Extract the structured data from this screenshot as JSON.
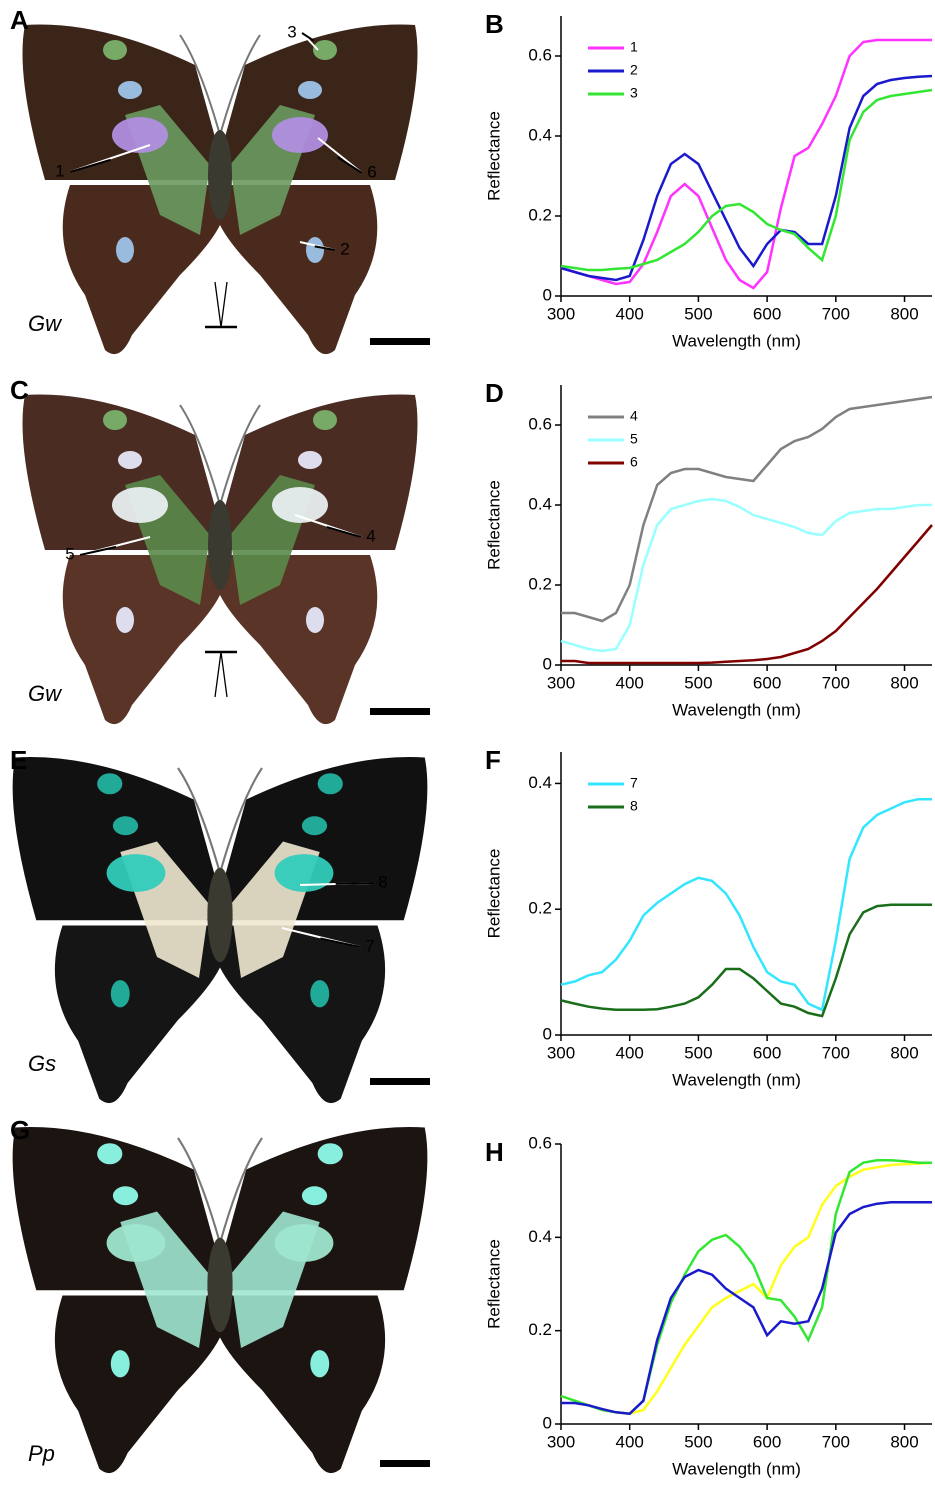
{
  "photos": [
    {
      "panel": "A",
      "species": "Gw",
      "labels": [
        "1",
        "2",
        "3",
        "6"
      ]
    },
    {
      "panel": "C",
      "species": "Gw",
      "labels": [
        "4",
        "5"
      ]
    },
    {
      "panel": "E",
      "species": "Gs",
      "labels": [
        "7",
        "8"
      ]
    },
    {
      "panel": "G",
      "species": "Pp"
    }
  ],
  "chart_data": [
    {
      "type": "line",
      "panel": "B",
      "x_label": "Wavelength (nm)",
      "y_label": "Reflectance",
      "x": [
        300,
        320,
        340,
        360,
        380,
        400,
        420,
        440,
        460,
        480,
        500,
        520,
        540,
        560,
        580,
        600,
        620,
        640,
        660,
        680,
        700,
        720,
        740,
        760,
        780,
        800,
        820,
        840
      ],
      "xlim": [
        300,
        840
      ],
      "xticks": [
        300,
        400,
        500,
        600,
        700,
        800
      ],
      "ylim": [
        0,
        0.7
      ],
      "yticks": [
        0,
        0.2,
        0.4,
        0.6
      ],
      "series": [
        {
          "name": "1",
          "color": "#ff33ff",
          "values": [
            0.07,
            0.06,
            0.05,
            0.04,
            0.03,
            0.035,
            0.08,
            0.16,
            0.25,
            0.28,
            0.25,
            0.17,
            0.09,
            0.04,
            0.02,
            0.06,
            0.22,
            0.35,
            0.37,
            0.43,
            0.5,
            0.6,
            0.635,
            0.64,
            0.64,
            0.64,
            0.64,
            0.64
          ]
        },
        {
          "name": "2",
          "color": "#1a1acc",
          "values": [
            0.07,
            0.06,
            0.05,
            0.045,
            0.04,
            0.05,
            0.14,
            0.25,
            0.33,
            0.355,
            0.33,
            0.26,
            0.19,
            0.12,
            0.075,
            0.13,
            0.165,
            0.16,
            0.13,
            0.13,
            0.25,
            0.42,
            0.5,
            0.53,
            0.54,
            0.545,
            0.548,
            0.55
          ]
        },
        {
          "name": "3",
          "color": "#33e633",
          "values": [
            0.075,
            0.07,
            0.065,
            0.065,
            0.068,
            0.07,
            0.08,
            0.09,
            0.11,
            0.13,
            0.16,
            0.2,
            0.225,
            0.23,
            0.21,
            0.18,
            0.165,
            0.155,
            0.12,
            0.09,
            0.2,
            0.39,
            0.46,
            0.49,
            0.5,
            0.505,
            0.51,
            0.515
          ]
        }
      ]
    },
    {
      "type": "line",
      "panel": "D",
      "x_label": "Wavelength (nm)",
      "y_label": "Reflectance",
      "x": [
        300,
        320,
        340,
        360,
        380,
        400,
        420,
        440,
        460,
        480,
        500,
        520,
        540,
        560,
        580,
        600,
        620,
        640,
        660,
        680,
        700,
        720,
        740,
        760,
        780,
        800,
        820,
        840
      ],
      "xlim": [
        300,
        840
      ],
      "xticks": [
        300,
        400,
        500,
        600,
        700,
        800
      ],
      "ylim": [
        0,
        0.7
      ],
      "yticks": [
        0,
        0.2,
        0.4,
        0.6
      ],
      "series": [
        {
          "name": "4",
          "color": "#808080",
          "values": [
            0.13,
            0.13,
            0.12,
            0.11,
            0.13,
            0.2,
            0.35,
            0.45,
            0.48,
            0.49,
            0.49,
            0.48,
            0.47,
            0.465,
            0.46,
            0.5,
            0.54,
            0.56,
            0.57,
            0.59,
            0.62,
            0.64,
            0.645,
            0.65,
            0.655,
            0.66,
            0.665,
            0.67
          ]
        },
        {
          "name": "5",
          "color": "#99ffff",
          "values": [
            0.06,
            0.05,
            0.04,
            0.035,
            0.04,
            0.1,
            0.25,
            0.35,
            0.39,
            0.4,
            0.41,
            0.415,
            0.41,
            0.395,
            0.375,
            0.365,
            0.355,
            0.345,
            0.33,
            0.325,
            0.36,
            0.38,
            0.385,
            0.39,
            0.39,
            0.395,
            0.4,
            0.4
          ]
        },
        {
          "name": "6",
          "color": "#800000",
          "values": [
            0.01,
            0.01,
            0.005,
            0.005,
            0.005,
            0.005,
            0.005,
            0.005,
            0.005,
            0.005,
            0.005,
            0.006,
            0.008,
            0.01,
            0.012,
            0.015,
            0.02,
            0.03,
            0.04,
            0.06,
            0.085,
            0.12,
            0.155,
            0.19,
            0.23,
            0.27,
            0.31,
            0.35
          ]
        }
      ]
    },
    {
      "type": "line",
      "panel": "F",
      "x_label": "Wavelength (nm)",
      "y_label": "Reflectance",
      "x": [
        300,
        320,
        340,
        360,
        380,
        400,
        420,
        440,
        460,
        480,
        500,
        520,
        540,
        560,
        580,
        600,
        620,
        640,
        660,
        680,
        700,
        720,
        740,
        760,
        780,
        800,
        820,
        840
      ],
      "xlim": [
        300,
        840
      ],
      "xticks": [
        300,
        400,
        500,
        600,
        700,
        800
      ],
      "ylim": [
        0,
        0.45
      ],
      "yticks": [
        0,
        0.2,
        0.4
      ],
      "series": [
        {
          "name": "7",
          "color": "#33e6ff",
          "values": [
            0.08,
            0.085,
            0.095,
            0.1,
            0.12,
            0.15,
            0.19,
            0.21,
            0.225,
            0.24,
            0.25,
            0.245,
            0.225,
            0.19,
            0.14,
            0.1,
            0.085,
            0.08,
            0.05,
            0.04,
            0.15,
            0.28,
            0.33,
            0.35,
            0.36,
            0.37,
            0.375,
            0.375
          ]
        },
        {
          "name": "8",
          "color": "#1a6e1a",
          "values": [
            0.055,
            0.05,
            0.045,
            0.042,
            0.04,
            0.04,
            0.04,
            0.041,
            0.045,
            0.05,
            0.06,
            0.08,
            0.105,
            0.105,
            0.09,
            0.07,
            0.05,
            0.045,
            0.035,
            0.03,
            0.09,
            0.16,
            0.195,
            0.205,
            0.207,
            0.207,
            0.207,
            0.207
          ]
        }
      ]
    },
    {
      "type": "line",
      "panel": "H",
      "x_label": "Wavelength (nm)",
      "y_label": "Reflectance",
      "x": [
        300,
        320,
        340,
        360,
        380,
        400,
        420,
        440,
        460,
        480,
        500,
        520,
        540,
        560,
        580,
        600,
        620,
        640,
        660,
        680,
        700,
        720,
        740,
        760,
        780,
        800,
        820,
        840
      ],
      "xlim": [
        300,
        840
      ],
      "xticks": [
        300,
        400,
        500,
        600,
        700,
        800
      ],
      "ylim": [
        0,
        0.6
      ],
      "yticks": [
        0,
        0.2,
        0.4,
        0.6
      ],
      "series": [
        {
          "color": "#ffff1a",
          "values": [
            0.06,
            0.05,
            0.04,
            0.03,
            0.025,
            0.022,
            0.03,
            0.07,
            0.12,
            0.17,
            0.21,
            0.25,
            0.27,
            0.285,
            0.3,
            0.27,
            0.34,
            0.38,
            0.4,
            0.47,
            0.51,
            0.53,
            0.545,
            0.55,
            0.555,
            0.557,
            0.558,
            0.56
          ]
        },
        {
          "color": "#33e633",
          "values": [
            0.06,
            0.05,
            0.04,
            0.03,
            0.025,
            0.022,
            0.05,
            0.17,
            0.26,
            0.32,
            0.37,
            0.395,
            0.405,
            0.38,
            0.34,
            0.27,
            0.265,
            0.23,
            0.18,
            0.25,
            0.45,
            0.54,
            0.56,
            0.565,
            0.565,
            0.563,
            0.56,
            0.56
          ]
        },
        {
          "color": "#1a1acc",
          "values": [
            0.045,
            0.045,
            0.04,
            0.032,
            0.025,
            0.022,
            0.05,
            0.18,
            0.27,
            0.315,
            0.33,
            0.32,
            0.29,
            0.27,
            0.25,
            0.19,
            0.22,
            0.215,
            0.22,
            0.29,
            0.41,
            0.45,
            0.465,
            0.472,
            0.475,
            0.475,
            0.475,
            0.475
          ]
        }
      ]
    }
  ]
}
